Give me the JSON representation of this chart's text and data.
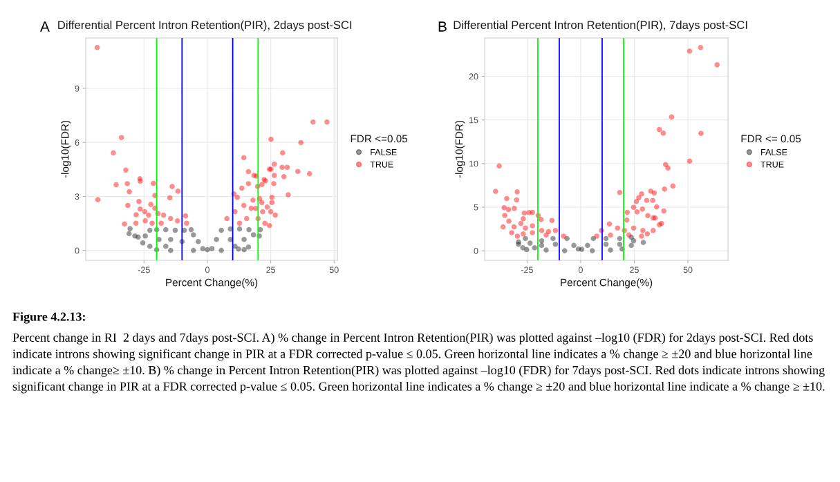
{
  "chart_data": [
    {
      "type": "scatter",
      "title": "Differential Percent Intron Retention(PIR), 2days post-SCI",
      "xlabel": "Percent Change(%)",
      "ylabel": "-log10(FDR)",
      "legend_title": "FDR <=0.05",
      "legend": "right",
      "grid": true,
      "marker": "circle",
      "xlim": [
        -48,
        51.3
      ],
      "ylim": [
        -0.55,
        11.8
      ],
      "xticks": [
        -25,
        0,
        25,
        50
      ],
      "yticks": [
        0,
        3,
        6,
        9
      ],
      "ref_lines": [
        {
          "axis": "x",
          "value": -20,
          "color": "#00ff00"
        },
        {
          "axis": "x",
          "value": -10,
          "color": "#0000ff"
        },
        {
          "axis": "x",
          "value": 10,
          "color": "#0000ff"
        },
        {
          "axis": "x",
          "value": 20,
          "color": "#00ff00"
        }
      ],
      "annotations": [
        "A"
      ],
      "series": [
        {
          "name": "FALSE",
          "color": "#000000",
          "x": [
            -30.5,
            -30.9,
            -28.6,
            -25.5,
            -24.5,
            -22.7,
            -20.0,
            -16.4,
            -12.7,
            -9.1,
            -6.4,
            -5.5,
            -3.6,
            -1.8,
            0,
            1.8,
            3.6,
            5.5,
            9.1,
            12.7,
            16.4,
            20.9,
            20.5,
            16.2,
            12.3,
            5.5,
            -5.5,
            -14.5,
            -20,
            -22.7,
            -27.3,
            -19.1,
            -14.5,
            -10,
            9.1,
            14.5,
            18.2,
            -16.4,
            10.9,
            14.5
          ],
          "values": [
            1.21,
            0.93,
            0.8,
            0.42,
            0.8,
            1.12,
            1.15,
            1.15,
            1.12,
            1.12,
            1.15,
            0.87,
            0.49,
            0.1,
            0.04,
            0.1,
            0.61,
            1.12,
            1.19,
            1.19,
            1.15,
            1.15,
            0.8,
            0.19,
            0.08,
            0,
            0,
            0,
            0.04,
            0.23,
            0.74,
            0.61,
            0.61,
            0.49,
            0.61,
            0.61,
            0.87,
            0.23,
            0.23,
            0.04
          ]
        },
        {
          "name": "TRUE",
          "color": "#ff0000",
          "x": [
            -43.5,
            -43.2,
            -37.1,
            -36.0,
            -33.9,
            -32.2,
            -31.6,
            -30.8,
            -31.4,
            -32.7,
            -26.6,
            -26.5,
            -27.0,
            -26.5,
            -28.1,
            -21.3,
            -20.7,
            -22.3,
            -20.7,
            -13.9,
            -11.6,
            -14.8,
            -8.6,
            -24.7,
            -23.2,
            -19.5,
            -17.3,
            -14.5,
            -11.8,
            -18.2,
            -24.5,
            -21.8,
            -8.2,
            -28.2,
            14.4,
            10.5,
            11.8,
            13.6,
            16.2,
            16.2,
            18.4,
            19.3,
            19.8,
            18.0,
            14.4,
            17.3,
            19.1,
            20.6,
            21.5,
            21.5,
            22.4,
            22.9,
            25.1,
            25.1,
            24.5,
            26.4,
            26.4,
            26.2,
            25.5,
            25.5,
            25.0,
            26.8,
            24.5,
            29.7,
            29.5,
            30.2,
            31.5,
            31.9,
            35.7,
            36.9,
            40.3,
            41.7,
            47.2,
            23.6,
            10.9,
            7.7,
            12.7,
            15.5,
            20.0,
            21.8,
            22.7
          ],
          "values": [
            11.27,
            2.82,
            5.42,
            3.65,
            6.27,
            4.46,
            3.71,
            3.26,
            2.5,
            1.47,
            3.98,
            3.84,
            2.72,
            2.3,
            1.98,
            3.72,
            3.05,
            2.55,
            2.34,
            3.55,
            3.29,
            2.92,
            1.92,
            2.15,
            1.96,
            2.05,
            1.96,
            1.77,
            1.64,
            1.51,
            1.64,
            1.51,
            1.51,
            1.51,
            5.15,
            3.14,
            2.95,
            3.46,
            4.38,
            3.71,
            4.17,
            4.13,
            3.55,
            2.79,
            2.5,
            2.34,
            2.33,
            2.88,
            2.66,
            3.66,
            3.94,
            3.86,
            6.17,
            4.51,
            4.51,
            4.79,
            4.17,
            3.71,
            2.95,
            2.66,
            2.15,
            1.96,
            1.38,
            5.42,
            4.62,
            4.1,
            4.62,
            3.09,
            4.39,
            5.99,
            4.26,
            7.13,
            7.13,
            2.41,
            2.15,
            1.77,
            1.51,
            1.77,
            1.77,
            2.15,
            1.51
          ]
        }
      ]
    },
    {
      "type": "scatter",
      "title": "Differential Percent Intron Retention(PIR), 7days post-SCI",
      "xlabel": "Percent Change(%)",
      "ylabel": "-log10(FDR)",
      "legend_title": "FDR <= 0.05",
      "legend": "right",
      "grid": true,
      "marker": "circle",
      "xlim": [
        -44.8,
        68.7
      ],
      "ylim": [
        -1.1,
        24.4
      ],
      "xticks": [
        -25,
        0,
        25,
        50
      ],
      "yticks": [
        0,
        5,
        10,
        15,
        20
      ],
      "ref_lines": [
        {
          "axis": "x",
          "value": -20,
          "color": "#00ff00"
        },
        {
          "axis": "x",
          "value": -10,
          "color": "#0000ff"
        },
        {
          "axis": "x",
          "value": 10,
          "color": "#0000ff"
        },
        {
          "axis": "x",
          "value": 20,
          "color": "#00ff00"
        }
      ],
      "annotations": [
        "B",
        "Figure 4.2.13:",
        "Percent change in RI  2 days and 7days post-SCI. A) % change in Percent Intron Retention(PIR) was plotted against –log10 (FDR) for 2days post-SCI. Red dots indicate introns showing significant change in PIR at a FDR corrected p-value ≤ 0.05. Green horizontal line indicates a % change ≥ ±20 and blue horizontal line indicate a % change≥ ±10. B) % change in Percent Intron Retention(PIR) was plotted against –log10 (FDR) for 7days post-SCI. Red dots indicate introns showing significant change in PIR at a FDR corrected p-value ≤ 0.05. Green horizontal line indicates a % change ≥ ±20 and blue horizontal line indicate a % change ≥ ±10."
      ],
      "series": [
        {
          "name": "FALSE",
          "color": "#000000",
          "x": [
            -29.0,
            -27.0,
            -25.2,
            -23.6,
            -25.8,
            -18.2,
            -12.9,
            -6.4,
            -3.2,
            -1.1,
            0.5,
            3.2,
            5.9,
            11.8,
            18.2,
            23.6,
            24.7,
            23.6,
            29.2,
            19.3,
            13.9,
            5.4,
            -7.5,
            -16.1,
            -21.5,
            -18.2,
            -11.8,
            11.8,
            18.2,
            -29.0
          ],
          "values": [
            1.01,
            0.34,
            0.13,
            0.87,
            1.4,
            1.14,
            1.4,
            1.4,
            0.61,
            0.21,
            0.16,
            0.61,
            1.4,
            1.4,
            1.4,
            1.54,
            1.14,
            0.61,
            0.95,
            0.21,
            0.08,
            0,
            0,
            0.08,
            0.34,
            0.61,
            0.74,
            0.74,
            0.74,
            0.74
          ]
        },
        {
          "name": "TRUE",
          "color": "#ff0000",
          "x": [
            -38.0,
            -39.7,
            -29.6,
            -34.5,
            -29.9,
            -35.7,
            -33.7,
            -31.0,
            -35.4,
            -33.5,
            -36.2,
            -31.1,
            -26.3,
            -24.1,
            -22.5,
            -19.8,
            -18.5,
            -13.4,
            -32.2,
            -29.5,
            -27.9,
            -26.8,
            -25.8,
            -22.5,
            -18.2,
            -15.0,
            -11.8,
            -8.0,
            -22.5,
            -26.8,
            -16.1,
            50.8,
            55.9,
            63.6,
            42.4,
            36.7,
            38.5,
            56.1,
            50.8,
            39.6,
            40.7,
            43.0,
            39.1,
            38.8,
            18.2,
            32.7,
            34.3,
            28.4,
            27.1,
            26.0,
            30.8,
            33.6,
            35.4,
            24.7,
            28.8,
            26.3,
            21.7,
            33.8,
            34.7,
            31.3,
            21.5,
            13.4,
            9.7,
            17.2,
            20.4,
            24.7,
            29.0,
            33.8,
            31.1,
            28.4,
            36.7,
            37.7,
            13.9,
            22.5,
            7.5
          ],
          "values": [
            9.72,
            6.81,
            6.75,
            5.99,
            5.83,
            4.93,
            4.72,
            4.85,
            4.05,
            3.39,
            2.73,
            2.73,
            4.32,
            4.37,
            4.4,
            4.05,
            3.58,
            3.47,
            2.07,
            1.67,
            3.13,
            3.66,
            2.6,
            2.86,
            2.33,
            2.2,
            2.33,
            1.67,
            2.07,
            1.93,
            1.8,
            22.89,
            23.31,
            21.32,
            15.34,
            13.91,
            13.48,
            13.46,
            10.28,
            9.88,
            9.48,
            7.42,
            7.07,
            4.56,
            6.68,
            6.83,
            6.62,
            6.52,
            6.09,
            5.64,
            5.77,
            5.77,
            5.03,
            4.98,
            4.77,
            4.45,
            4.4,
            3.76,
            3.76,
            4.03,
            3.52,
            3.07,
            2.33,
            2.6,
            2.33,
            2.6,
            2.33,
            2.33,
            1.93,
            1.67,
            2.99,
            3.13,
            1.8,
            1.8,
            1.67
          ]
        }
      ]
    }
  ]
}
